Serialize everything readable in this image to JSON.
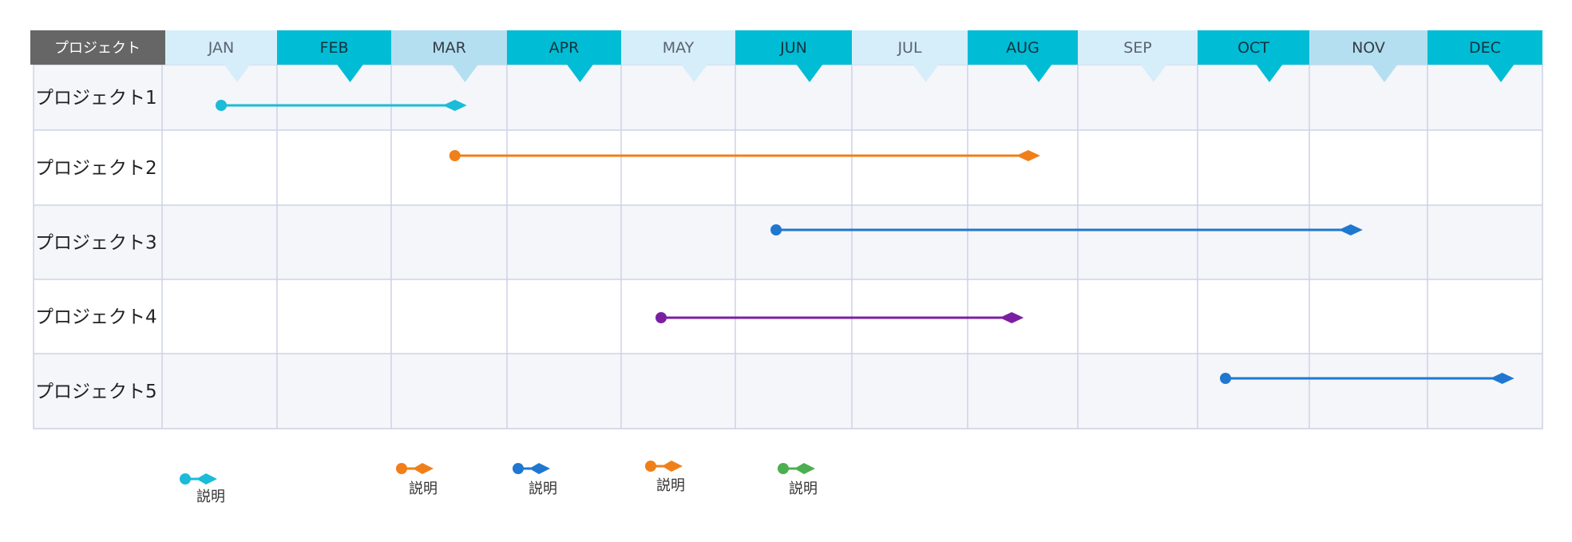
{
  "header": {
    "project_title": "プロジェクト"
  },
  "chart_data": {
    "type": "gantt",
    "months": [
      "JAN",
      "FEB",
      "MAR",
      "APR",
      "MAY",
      "JUN",
      "JUL",
      "AUG",
      "SEP",
      "OCT",
      "NOV",
      "DEC"
    ],
    "month_styles": [
      "light",
      "dark",
      "mid",
      "dark",
      "light",
      "dark",
      "light",
      "dark",
      "light",
      "dark",
      "mid",
      "dark"
    ],
    "projects": [
      {
        "name": "プロジェクト1",
        "start": 0.5,
        "end": 2.55,
        "color": "#1bbbd9"
      },
      {
        "name": "プロジェクト2",
        "start": 2.55,
        "end": 7.55,
        "color": "#f07f1a"
      },
      {
        "name": "プロジェクト3",
        "start": 5.35,
        "end": 10.35,
        "color": "#1f77d0"
      },
      {
        "name": "プロジェクト4",
        "start": 4.35,
        "end": 7.4,
        "color": "#7b1fa2"
      },
      {
        "name": "プロジェクト5",
        "start": 9.25,
        "end": 11.65,
        "color": "#1f77d0"
      }
    ]
  },
  "legend": [
    {
      "label": "説明",
      "color": "#1bbbd9"
    },
    {
      "label": "説明",
      "color": "#f07f1a"
    },
    {
      "label": "説明",
      "color": "#1f77d0"
    },
    {
      "label": "説明",
      "color": "#f07f1a"
    },
    {
      "label": "説明",
      "color": "#4caf50"
    }
  ],
  "colors": {
    "header_dark": "#00bcd4",
    "header_mid": "#b4dff0",
    "header_light": "#d6eef9",
    "header_corner": "#666666",
    "row_shade": "#f4f6fa",
    "grid": "#cdd2e6"
  }
}
